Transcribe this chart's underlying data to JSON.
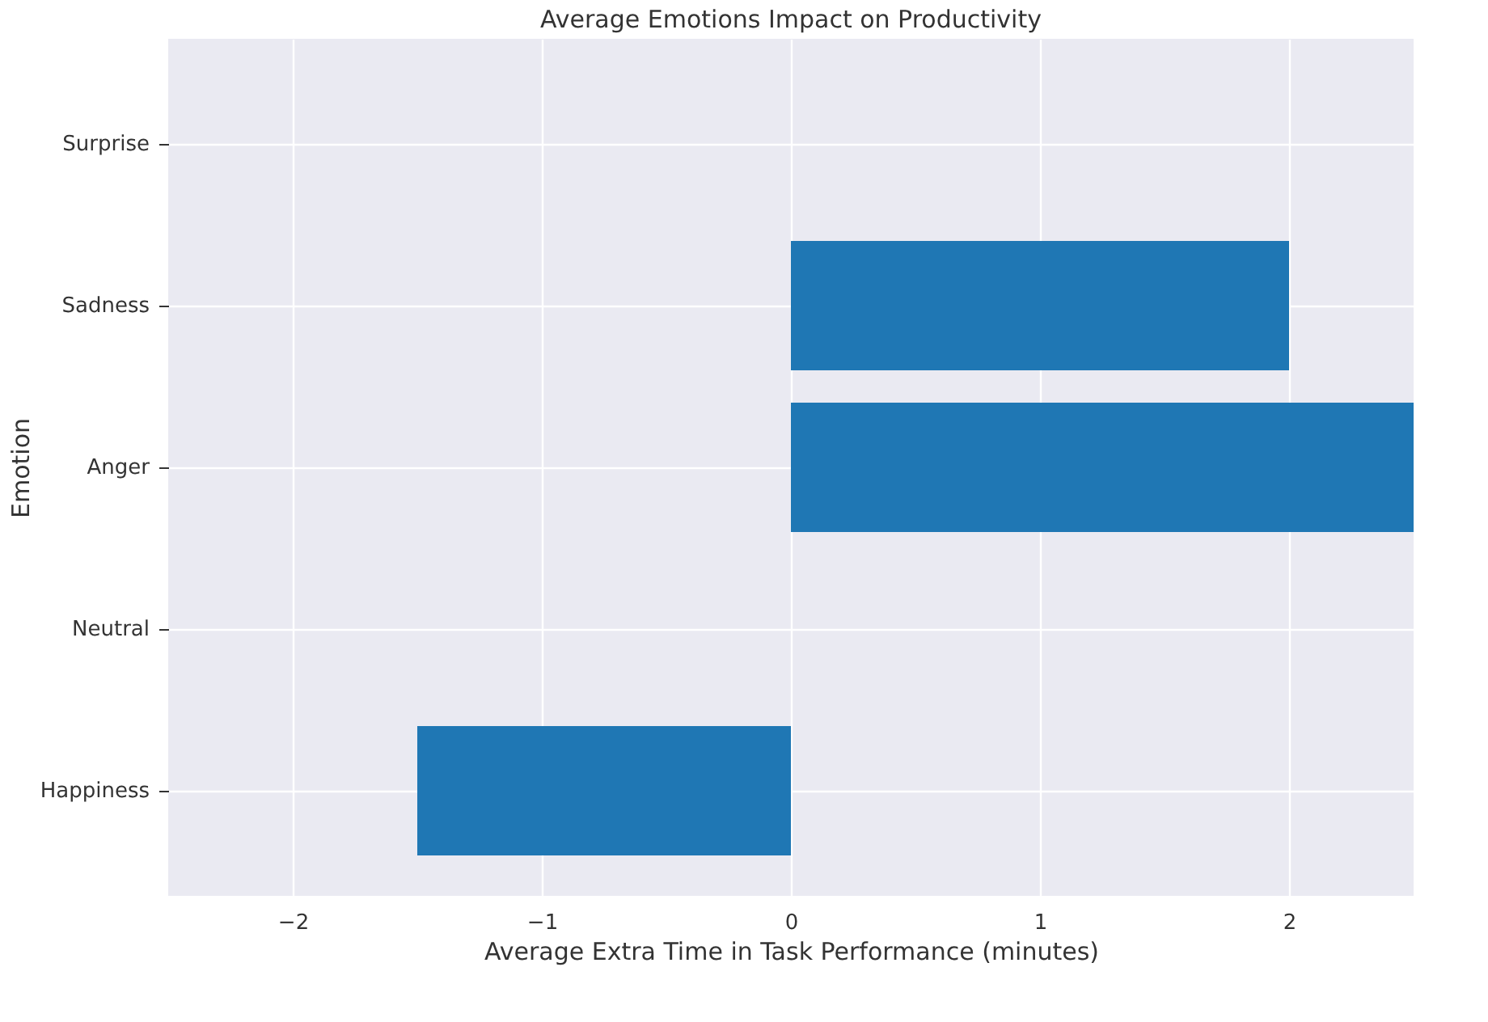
{
  "chart_data": {
    "type": "bar",
    "orientation": "horizontal",
    "title": "Average Emotions Impact on Productivity",
    "xlabel": "Average Extra Time in Task Performance (minutes)",
    "ylabel": "Emotion",
    "categories": [
      "Surprise",
      "Sadness",
      "Anger",
      "Neutral",
      "Happiness"
    ],
    "values": [
      0,
      2,
      2.5,
      0,
      -1.5
    ],
    "color": "#1f77b4",
    "xlim": [
      -2.5,
      2.5
    ],
    "xticks": [
      {
        "value": -2,
        "label": "−2"
      },
      {
        "value": -1,
        "label": "−1"
      },
      0,
      1,
      2
    ],
    "grid": true
  }
}
